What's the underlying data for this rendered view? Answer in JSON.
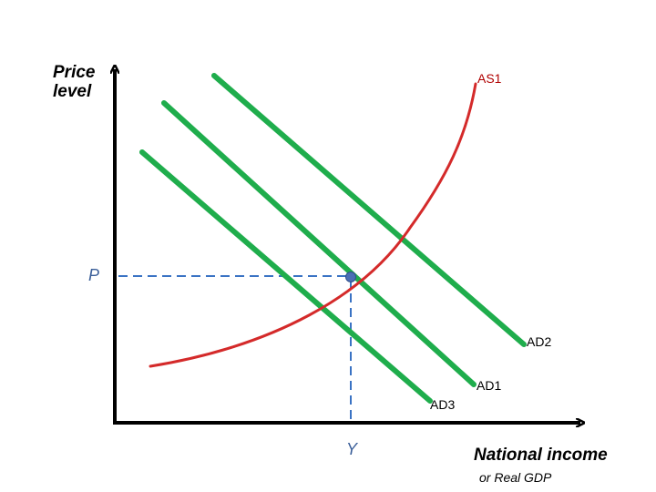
{
  "axes": {
    "y_title_line1": "Price",
    "y_title_line2": "level",
    "x_title": "National income",
    "x_subtitle": "or Real GDP"
  },
  "curves": {
    "as1": {
      "label": "AS1",
      "color": "#d42a2a"
    },
    "ad1": {
      "label": "AD1",
      "color": "#1fad4c"
    },
    "ad2": {
      "label": "AD2",
      "color": "#1fad4c"
    },
    "ad3": {
      "label": "AD3",
      "color": "#1fad4c"
    }
  },
  "equilibrium": {
    "price_label": "P",
    "output_label": "Y",
    "guide_color": "#3a73c4",
    "point_color": "#4a6fb5"
  },
  "colors": {
    "axis": "#000000"
  }
}
